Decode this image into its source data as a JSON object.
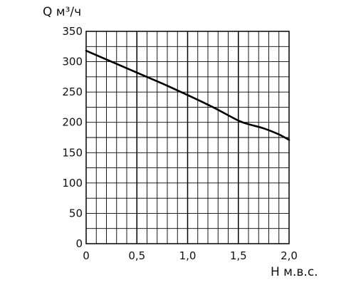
{
  "chart_data": {
    "type": "line",
    "title": "",
    "xlabel": "Н м.в.с.",
    "ylabel": "Q м³/ч",
    "xlim": [
      0,
      2.0
    ],
    "ylim": [
      0,
      350
    ],
    "x_ticks": [
      0,
      0.5,
      1.0,
      1.5,
      2.0
    ],
    "x_tick_labels": [
      "0",
      "0,5",
      "1,0",
      "1,5",
      "2,0"
    ],
    "y_ticks": [
      0,
      50,
      100,
      150,
      200,
      250,
      300,
      350
    ],
    "y_tick_labels": [
      "0",
      "50",
      "100",
      "150",
      "200",
      "250",
      "300",
      "350"
    ],
    "grid": true,
    "series": [
      {
        "x": [
          0,
          0.25,
          0.5,
          0.75,
          1.0,
          1.25,
          1.5,
          1.6,
          1.75,
          1.9,
          2.0
        ],
        "y": [
          318,
          300,
          282,
          264,
          245,
          225,
          203,
          197,
          190,
          180,
          171
        ]
      }
    ],
    "colors": {
      "line": "#000000",
      "grid": "#000000",
      "background": "#ffffff"
    }
  }
}
